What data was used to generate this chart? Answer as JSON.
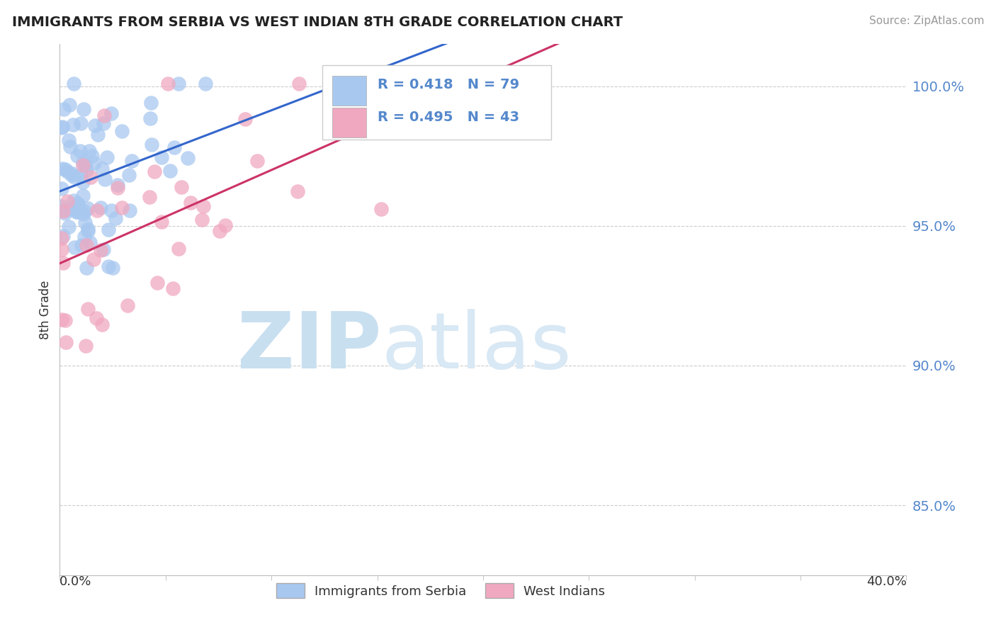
{
  "title": "IMMIGRANTS FROM SERBIA VS WEST INDIAN 8TH GRADE CORRELATION CHART",
  "source": "Source: ZipAtlas.com",
  "ylabel": "8th Grade",
  "x_range": [
    0.0,
    0.4
  ],
  "y_range": [
    0.825,
    1.015
  ],
  "y_ticks": [
    0.85,
    0.9,
    0.95,
    1.0
  ],
  "y_tick_labels": [
    "85.0%",
    "90.0%",
    "95.0%",
    "100.0%"
  ],
  "serbia_R": 0.418,
  "serbia_N": 79,
  "westindian_R": 0.495,
  "westindian_N": 43,
  "serbia_color": "#a8c8f0",
  "serbia_edge_color": "#6699cc",
  "serbia_line_color": "#3366cc",
  "westindian_color": "#f0a8c0",
  "westindian_edge_color": "#cc6699",
  "westindian_line_color": "#cc3366",
  "background_color": "#ffffff",
  "watermark_zip_color": "#c8dff0",
  "watermark_atlas_color": "#d8e8f4",
  "legend_label_serbia": "Immigrants from Serbia",
  "legend_label_westindian": "West Indians",
  "tick_color": "#5588cc",
  "grid_color": "#cccccc"
}
